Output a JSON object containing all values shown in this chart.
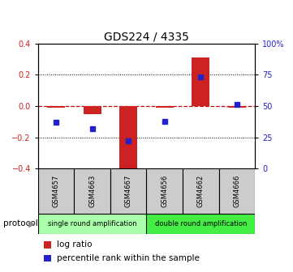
{
  "title": "GDS224 / 4335",
  "samples": [
    "GSM4657",
    "GSM4663",
    "GSM4667",
    "GSM4656",
    "GSM4662",
    "GSM4666"
  ],
  "log_ratio": [
    -0.01,
    -0.05,
    -0.42,
    -0.01,
    0.31,
    -0.01
  ],
  "percentile_rank": [
    37,
    32,
    22,
    38,
    73,
    51
  ],
  "ylim_left": [
    -0.4,
    0.4
  ],
  "ylim_right": [
    0,
    100
  ],
  "yticks_left": [
    -0.4,
    -0.2,
    0.0,
    0.2,
    0.4
  ],
  "yticks_right": [
    0,
    25,
    50,
    75,
    100
  ],
  "ytick_labels_right": [
    "0",
    "25",
    "50",
    "75",
    "100%"
  ],
  "bar_color": "#cc2222",
  "dot_color": "#2222cc",
  "groups": [
    {
      "label": "single round amplification",
      "indices": [
        0,
        1,
        2
      ],
      "color": "#aaffaa"
    },
    {
      "label": "double round amplification",
      "indices": [
        3,
        4,
        5
      ],
      "color": "#44ee44"
    }
  ],
  "protocol_label": "protocol",
  "legend_bar_label": "log ratio",
  "legend_dot_label": "percentile rank within the sample",
  "dashed_line_color": "#cc0000",
  "background_color": "#ffffff",
  "sample_bg_color": "#cccccc",
  "group1_color": "#aaffaa",
  "group2_color": "#44ee44"
}
